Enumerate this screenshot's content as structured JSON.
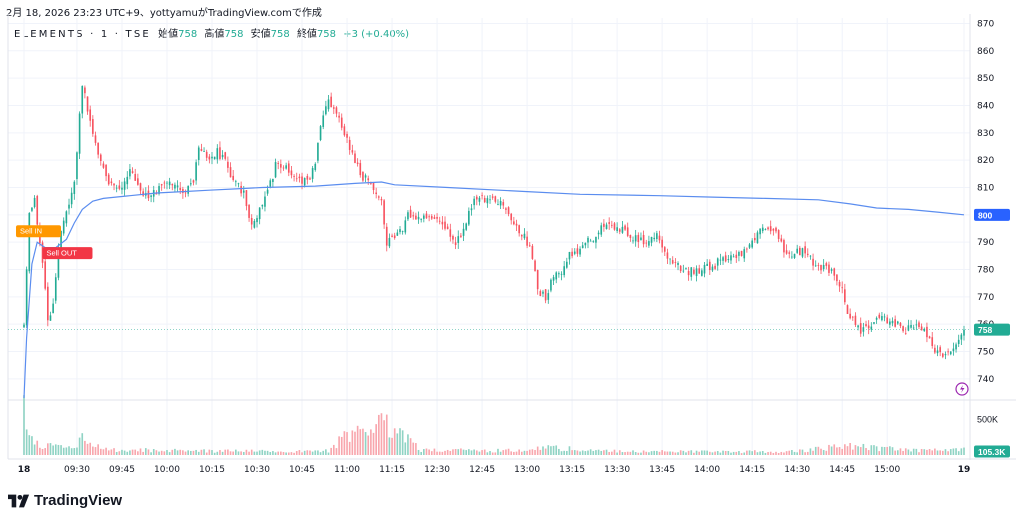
{
  "header": {
    "caption": "2月 18, 2026 23:23 UTC+9、yottyamuがTradingView.comで作成",
    "symbol": "ELEMENTS · 1 · TSE",
    "ohlc": [
      {
        "key": "始値",
        "value": "758"
      },
      {
        "key": "高値",
        "value": "758"
      },
      {
        "key": "安値",
        "value": "758"
      },
      {
        "key": "終値",
        "value": "758"
      }
    ],
    "change": "+3 (+0.40%)"
  },
  "badges": {
    "sell_in": "Sell IN",
    "sell_out": "Sell OUT",
    "vwap_label": "800",
    "last_price_label": "758",
    "volume_label": "105.3K",
    "volume_tick": "500K"
  },
  "footer": {
    "brand": "TradingView"
  },
  "colors": {
    "up": "#22ab94",
    "down": "#f7525f",
    "vwap": "#5b8def",
    "sell_in": "#ff9800",
    "sell_out": "#f23645",
    "grid": "#f0f3fa",
    "vol_up": "#8fd3c4",
    "vol_down": "#f8a6ad",
    "axis_text": "#131722"
  },
  "chart_data": {
    "type": "candlestick",
    "title": "",
    "price_axis": {
      "range": [
        733,
        872
      ],
      "ticks": [
        740,
        750,
        760,
        770,
        780,
        790,
        800,
        810,
        820,
        830,
        840,
        850,
        860,
        870
      ]
    },
    "volume_axis": {
      "range": [
        0,
        750000
      ],
      "ticks": [
        500000
      ],
      "tick_labels": [
        "500K"
      ]
    },
    "time_axis": {
      "range": [
        0,
        355
      ],
      "labels": [
        {
          "t": 0,
          "label": "18"
        },
        {
          "t": 20,
          "label": "09:30"
        },
        {
          "t": 37,
          "label": "09:45"
        },
        {
          "t": 54,
          "label": "10:00"
        },
        {
          "t": 71,
          "label": "10:15"
        },
        {
          "t": 88,
          "label": "10:30"
        },
        {
          "t": 105,
          "label": "10:45"
        },
        {
          "t": 122,
          "label": "11:00"
        },
        {
          "t": 139,
          "label": "11:15"
        },
        {
          "t": 156,
          "label": "12:30"
        },
        {
          "t": 173,
          "label": "12:45"
        },
        {
          "t": 190,
          "label": "13:00"
        },
        {
          "t": 207,
          "label": "13:15"
        },
        {
          "t": 224,
          "label": "13:30"
        },
        {
          "t": 241,
          "label": "13:45"
        },
        {
          "t": 258,
          "label": "14:00"
        },
        {
          "t": 275,
          "label": "14:15"
        },
        {
          "t": 292,
          "label": "14:30"
        },
        {
          "t": 309,
          "label": "14:45"
        },
        {
          "t": 326,
          "label": "15:00"
        },
        {
          "t": 355,
          "label": "19"
        }
      ]
    },
    "price_keypoints": [
      [
        0,
        760
      ],
      [
        2,
        800
      ],
      [
        4,
        806
      ],
      [
        6,
        790
      ],
      [
        8,
        772
      ],
      [
        9,
        760
      ],
      [
        11,
        768
      ],
      [
        14,
        795
      ],
      [
        17,
        805
      ],
      [
        19,
        812
      ],
      [
        22,
        848
      ],
      [
        25,
        835
      ],
      [
        28,
        822
      ],
      [
        32,
        812
      ],
      [
        36,
        808
      ],
      [
        40,
        816
      ],
      [
        44,
        808
      ],
      [
        48,
        806
      ],
      [
        52,
        812
      ],
      [
        56,
        812
      ],
      [
        58,
        810
      ],
      [
        61,
        808
      ],
      [
        64,
        813
      ],
      [
        66,
        826
      ],
      [
        70,
        821
      ],
      [
        73,
        823
      ],
      [
        76,
        820
      ],
      [
        79,
        812
      ],
      [
        83,
        808
      ],
      [
        86,
        796
      ],
      [
        89,
        802
      ],
      [
        92,
        808
      ],
      [
        95,
        818
      ],
      [
        99,
        818
      ],
      [
        103,
        813
      ],
      [
        107,
        812
      ],
      [
        110,
        818
      ],
      [
        112,
        832
      ],
      [
        115,
        842
      ],
      [
        118,
        836
      ],
      [
        121,
        830
      ],
      [
        124,
        822
      ],
      [
        127,
        815
      ],
      [
        130,
        812
      ],
      [
        133,
        808
      ],
      [
        135,
        805
      ],
      [
        137,
        790
      ],
      [
        140,
        792
      ],
      [
        143,
        795
      ],
      [
        145,
        801
      ],
      [
        149,
        799
      ],
      [
        153,
        800
      ],
      [
        157,
        797
      ],
      [
        160,
        794
      ],
      [
        163,
        790
      ],
      [
        166,
        795
      ],
      [
        169,
        803
      ],
      [
        172,
        807
      ],
      [
        175,
        805
      ],
      [
        178,
        806
      ],
      [
        182,
        803
      ],
      [
        186,
        796
      ],
      [
        190,
        790
      ],
      [
        192,
        785
      ],
      [
        194,
        772
      ],
      [
        197,
        770
      ],
      [
        200,
        777
      ],
      [
        203,
        780
      ],
      [
        206,
        785
      ],
      [
        209,
        786
      ],
      [
        212,
        790
      ],
      [
        215,
        792
      ],
      [
        219,
        796
      ],
      [
        223,
        795
      ],
      [
        227,
        794
      ],
      [
        231,
        791
      ],
      [
        235,
        790
      ],
      [
        239,
        792
      ],
      [
        241,
        789
      ],
      [
        243,
        785
      ],
      [
        246,
        782
      ],
      [
        250,
        779
      ],
      [
        255,
        780
      ],
      [
        260,
        781
      ],
      [
        264,
        784
      ],
      [
        268,
        785
      ],
      [
        272,
        786
      ],
      [
        275,
        790
      ],
      [
        277,
        794
      ],
      [
        280,
        795
      ],
      [
        283,
        794
      ],
      [
        285,
        791
      ],
      [
        287,
        787
      ],
      [
        291,
        786
      ],
      [
        294,
        787
      ],
      [
        297,
        784
      ],
      [
        300,
        781
      ],
      [
        304,
        780
      ],
      [
        307,
        777
      ],
      [
        309,
        773
      ],
      [
        311,
        765
      ],
      [
        313,
        761
      ],
      [
        316,
        758
      ],
      [
        319,
        760
      ],
      [
        322,
        762
      ],
      [
        326,
        761
      ],
      [
        330,
        760
      ],
      [
        333,
        758
      ],
      [
        336,
        759
      ],
      [
        340,
        757
      ],
      [
        342,
        754
      ],
      [
        344,
        751
      ],
      [
        346,
        750
      ],
      [
        348,
        748
      ],
      [
        350,
        749
      ],
      [
        352,
        752
      ],
      [
        354,
        756
      ],
      [
        355,
        758
      ]
    ],
    "vwap_keypoints": [
      [
        0,
        733
      ],
      [
        1,
        755
      ],
      [
        3,
        782
      ],
      [
        5,
        790
      ],
      [
        8,
        788
      ],
      [
        12,
        788
      ],
      [
        16,
        791
      ],
      [
        19,
        797
      ],
      [
        22,
        802
      ],
      [
        26,
        805
      ],
      [
        30,
        806
      ],
      [
        40,
        807
      ],
      [
        50,
        808
      ],
      [
        60,
        808.5
      ],
      [
        70,
        809
      ],
      [
        80,
        809.5
      ],
      [
        90,
        810
      ],
      [
        110,
        810.5
      ],
      [
        125,
        811.5
      ],
      [
        135,
        812
      ],
      [
        140,
        811
      ],
      [
        160,
        810
      ],
      [
        190,
        808.5
      ],
      [
        210,
        807.5
      ],
      [
        240,
        807
      ],
      [
        260,
        806.5
      ],
      [
        280,
        806
      ],
      [
        300,
        805.5
      ],
      [
        312,
        804
      ],
      [
        322,
        802.5
      ],
      [
        334,
        802
      ],
      [
        345,
        801
      ],
      [
        355,
        800
      ]
    ],
    "volume_keypoints": [
      [
        0,
        640000
      ],
      [
        2,
        260000
      ],
      [
        4,
        180000
      ],
      [
        10,
        120000
      ],
      [
        20,
        90000
      ],
      [
        21,
        250000
      ],
      [
        30,
        80000
      ],
      [
        60,
        60000
      ],
      [
        100,
        50000
      ],
      [
        115,
        60000
      ],
      [
        120,
        220000
      ],
      [
        137,
        480000
      ],
      [
        150,
        70000
      ],
      [
        190,
        60000
      ],
      [
        194,
        120000
      ],
      [
        220,
        55000
      ],
      [
        260,
        45000
      ],
      [
        290,
        50000
      ],
      [
        309,
        130000
      ],
      [
        340,
        60000
      ],
      [
        350,
        70000
      ],
      [
        355,
        105300
      ]
    ],
    "last_close": 758,
    "vwap_last": 800,
    "last_volume": 105300,
    "markers": [
      {
        "label": "Sell IN",
        "t": 3,
        "price": 794
      },
      {
        "label": "Sell OUT",
        "t": 8,
        "price": 786
      }
    ]
  }
}
